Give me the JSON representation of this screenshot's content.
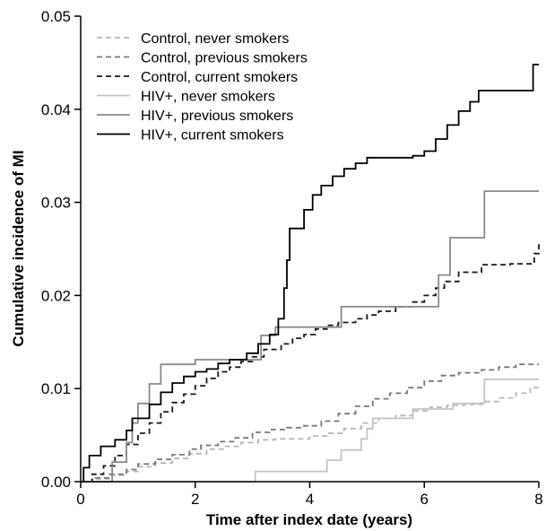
{
  "chart_data": {
    "type": "line",
    "title": "",
    "xlabel": "Time after index date (years)",
    "ylabel": "Cumulative incidence of MI",
    "xlim": [
      0,
      8
    ],
    "ylim": [
      0,
      0.05
    ],
    "x_ticks": [
      0,
      2,
      4,
      6,
      8
    ],
    "x_tick_labels": [
      "0",
      "2",
      "4",
      "6",
      "8"
    ],
    "y_ticks": [
      0,
      0.01,
      0.02,
      0.03,
      0.04,
      0.05
    ],
    "y_tick_labels": [
      "0.00",
      "0.01",
      "0.02",
      "0.03",
      "0.04",
      "0.05"
    ],
    "grid": false,
    "legend_position": "top-left",
    "series": [
      {
        "name": "Control, never smokers",
        "color": "#b8b8b8",
        "dash": "dashed",
        "step": true,
        "points": [
          [
            0,
            0
          ],
          [
            0.2,
            0.0003
          ],
          [
            0.5,
            0.0007
          ],
          [
            0.8,
            0.0011
          ],
          [
            1.0,
            0.0016
          ],
          [
            1.3,
            0.002
          ],
          [
            1.6,
            0.0025
          ],
          [
            1.9,
            0.003
          ],
          [
            2.2,
            0.0035
          ],
          [
            2.5,
            0.0038
          ],
          [
            2.8,
            0.0042
          ],
          [
            3.1,
            0.0045
          ],
          [
            3.4,
            0.0046
          ],
          [
            3.7,
            0.0046
          ],
          [
            4.0,
            0.0049
          ],
          [
            4.3,
            0.0052
          ],
          [
            4.6,
            0.0057
          ],
          [
            4.9,
            0.0063
          ],
          [
            5.2,
            0.0068
          ],
          [
            5.5,
            0.0071
          ],
          [
            5.8,
            0.0076
          ],
          [
            6.1,
            0.008
          ],
          [
            6.4,
            0.0082
          ],
          [
            6.7,
            0.0083
          ],
          [
            7.0,
            0.0086
          ],
          [
            7.3,
            0.009
          ],
          [
            7.6,
            0.0095
          ],
          [
            7.85,
            0.0101
          ],
          [
            8.0,
            0.0101
          ]
        ]
      },
      {
        "name": "Control, previous smokers",
        "color": "#7a7a7a",
        "dash": "dashed",
        "step": true,
        "points": [
          [
            0,
            0
          ],
          [
            0.2,
            0.0004
          ],
          [
            0.5,
            0.0008
          ],
          [
            0.8,
            0.0013
          ],
          [
            1.0,
            0.0019
          ],
          [
            1.3,
            0.0024
          ],
          [
            1.6,
            0.0029
          ],
          [
            1.9,
            0.0035
          ],
          [
            2.1,
            0.0039
          ],
          [
            2.4,
            0.0043
          ],
          [
            2.7,
            0.0047
          ],
          [
            3.0,
            0.0053
          ],
          [
            3.3,
            0.0056
          ],
          [
            3.6,
            0.0058
          ],
          [
            3.9,
            0.006
          ],
          [
            4.2,
            0.0065
          ],
          [
            4.5,
            0.0073
          ],
          [
            4.8,
            0.0081
          ],
          [
            5.1,
            0.0089
          ],
          [
            5.4,
            0.0095
          ],
          [
            5.7,
            0.0101
          ],
          [
            6.0,
            0.0108
          ],
          [
            6.3,
            0.0114
          ],
          [
            6.6,
            0.0117
          ],
          [
            7.0,
            0.012
          ],
          [
            7.3,
            0.0123
          ],
          [
            7.6,
            0.0126
          ],
          [
            8.0,
            0.0126
          ]
        ]
      },
      {
        "name": "Control, current smokers",
        "color": "#1a1a1a",
        "dash": "dashed",
        "step": true,
        "points": [
          [
            0,
            0
          ],
          [
            0.2,
            0.0008
          ],
          [
            0.4,
            0.0017
          ],
          [
            0.6,
            0.0028
          ],
          [
            0.8,
            0.004
          ],
          [
            1.0,
            0.0052
          ],
          [
            1.2,
            0.0063
          ],
          [
            1.4,
            0.0075
          ],
          [
            1.6,
            0.0085
          ],
          [
            1.8,
            0.0094
          ],
          [
            2.0,
            0.0103
          ],
          [
            2.2,
            0.0111
          ],
          [
            2.4,
            0.0118
          ],
          [
            2.6,
            0.0123
          ],
          [
            2.8,
            0.0129
          ],
          [
            3.0,
            0.0134
          ],
          [
            3.2,
            0.0142
          ],
          [
            3.5,
            0.0148
          ],
          [
            3.7,
            0.0154
          ],
          [
            3.9,
            0.0158
          ],
          [
            4.1,
            0.0164
          ],
          [
            4.3,
            0.0168
          ],
          [
            4.5,
            0.0171
          ],
          [
            4.8,
            0.0175
          ],
          [
            5.0,
            0.0179
          ],
          [
            5.2,
            0.0183
          ],
          [
            5.5,
            0.0188
          ],
          [
            5.8,
            0.0193
          ],
          [
            6.0,
            0.02
          ],
          [
            6.2,
            0.0208
          ],
          [
            6.35,
            0.0215
          ],
          [
            6.6,
            0.0225
          ],
          [
            7.0,
            0.0233
          ],
          [
            7.5,
            0.0234
          ],
          [
            7.85,
            0.0234
          ],
          [
            7.92,
            0.0245
          ],
          [
            8.0,
            0.0255
          ]
        ]
      },
      {
        "name": "HIV+, never smokers",
        "color": "#c4c4c4",
        "dash": "solid",
        "step": true,
        "points": [
          [
            0,
            0
          ],
          [
            3.0,
            0
          ],
          [
            3.05,
            0.0011
          ],
          [
            4.2,
            0.0011
          ],
          [
            4.3,
            0.0023
          ],
          [
            4.55,
            0.0034
          ],
          [
            4.9,
            0.0046
          ],
          [
            5.0,
            0.0057
          ],
          [
            5.1,
            0.0068
          ],
          [
            5.6,
            0.0068
          ],
          [
            5.8,
            0.0078
          ],
          [
            6.5,
            0.0084
          ],
          [
            7.0,
            0.0084
          ],
          [
            7.05,
            0.011
          ],
          [
            8.0,
            0.011
          ]
        ]
      },
      {
        "name": "HIV+, previous smokers",
        "color": "#8a8a8a",
        "dash": "solid",
        "step": true,
        "points": [
          [
            0,
            0
          ],
          [
            0.4,
            0
          ],
          [
            0.55,
            0.0021
          ],
          [
            0.8,
            0.0042
          ],
          [
            0.9,
            0.0063
          ],
          [
            1.0,
            0.0084
          ],
          [
            1.2,
            0.0105
          ],
          [
            1.4,
            0.0126
          ],
          [
            1.9,
            0.0126
          ],
          [
            2.0,
            0.0131
          ],
          [
            2.6,
            0.0131
          ],
          [
            3.1,
            0.0131
          ],
          [
            3.15,
            0.0157
          ],
          [
            3.3,
            0.0157
          ],
          [
            3.4,
            0.0166
          ],
          [
            3.5,
            0.0166
          ],
          [
            4.5,
            0.0166
          ],
          [
            4.55,
            0.0188
          ],
          [
            6.2,
            0.0188
          ],
          [
            6.25,
            0.0222
          ],
          [
            6.45,
            0.0262
          ],
          [
            7.0,
            0.0262
          ],
          [
            7.05,
            0.0312
          ],
          [
            8.0,
            0.0312
          ]
        ]
      },
      {
        "name": "HIV+, current smokers",
        "color": "#000000",
        "dash": "solid",
        "step": true,
        "points": [
          [
            0,
            0
          ],
          [
            0.05,
            0.0015
          ],
          [
            0.15,
            0.0028
          ],
          [
            0.35,
            0.0038
          ],
          [
            0.6,
            0.0045
          ],
          [
            0.8,
            0.0055
          ],
          [
            0.9,
            0.0068
          ],
          [
            1.2,
            0.0083
          ],
          [
            1.4,
            0.0096
          ],
          [
            1.6,
            0.0106
          ],
          [
            1.8,
            0.0113
          ],
          [
            2.0,
            0.0118
          ],
          [
            2.2,
            0.0121
          ],
          [
            2.4,
            0.0127
          ],
          [
            2.6,
            0.0131
          ],
          [
            2.9,
            0.0138
          ],
          [
            3.1,
            0.0148
          ],
          [
            3.3,
            0.0158
          ],
          [
            3.45,
            0.0175
          ],
          [
            3.55,
            0.0208
          ],
          [
            3.6,
            0.0238
          ],
          [
            3.65,
            0.0272
          ],
          [
            3.8,
            0.0272
          ],
          [
            3.9,
            0.0292
          ],
          [
            4.05,
            0.0308
          ],
          [
            4.2,
            0.0318
          ],
          [
            4.4,
            0.0328
          ],
          [
            4.6,
            0.0336
          ],
          [
            4.8,
            0.0342
          ],
          [
            5.0,
            0.0348
          ],
          [
            5.4,
            0.0348
          ],
          [
            5.8,
            0.035
          ],
          [
            6.0,
            0.0355
          ],
          [
            6.2,
            0.0368
          ],
          [
            6.4,
            0.0383
          ],
          [
            6.6,
            0.0398
          ],
          [
            6.8,
            0.0408
          ],
          [
            6.95,
            0.042
          ],
          [
            7.85,
            0.042
          ],
          [
            7.9,
            0.0448
          ],
          [
            8.0,
            0.0448
          ]
        ]
      }
    ]
  }
}
